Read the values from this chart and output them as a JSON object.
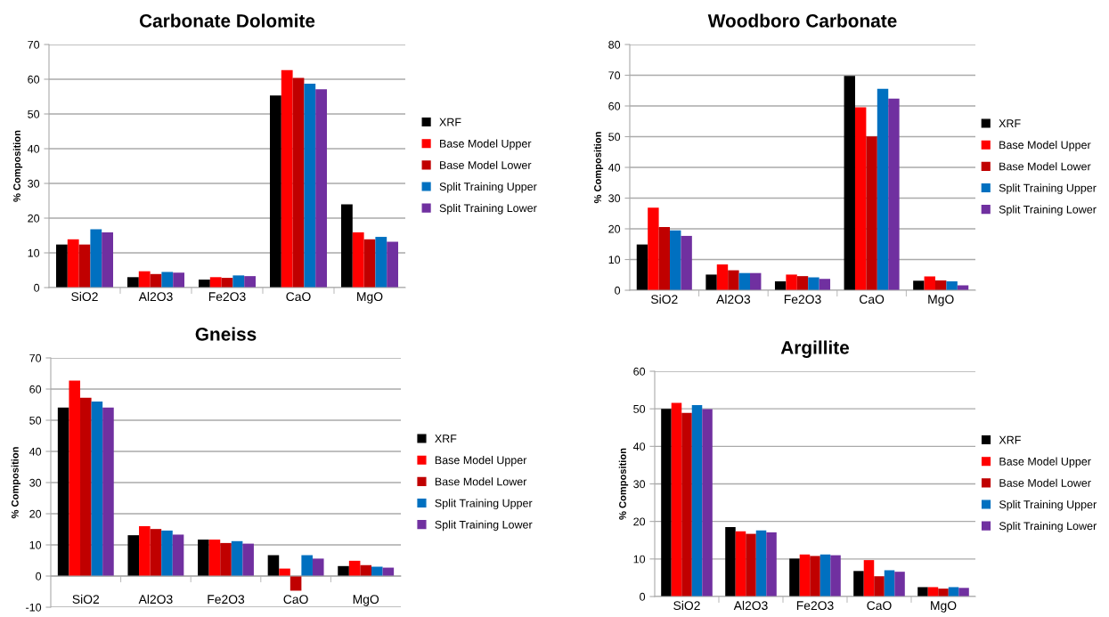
{
  "chart_data": [
    {
      "type": "bar",
      "title": "Carbonate Dolomite",
      "ylabel": "% Composition",
      "categories": [
        "SiO2",
        "Al2O3",
        "Fe2O3",
        "CaO",
        "MgO"
      ],
      "ylim": [
        0,
        70
      ],
      "yticks": [
        0,
        10,
        20,
        30,
        40,
        50,
        60,
        70
      ],
      "grid": "y",
      "legend": "right",
      "series": [
        {
          "name": "XRF",
          "color": "#000000",
          "values": [
            12.4,
            3.0,
            2.3,
            55.3,
            24.0
          ]
        },
        {
          "name": "Base Model Upper",
          "color": "#ff0000",
          "values": [
            13.9,
            4.7,
            3.0,
            62.6,
            15.9
          ]
        },
        {
          "name": "Base Model Lower",
          "color": "#c00000",
          "values": [
            12.4,
            3.9,
            2.8,
            60.4,
            13.9
          ]
        },
        {
          "name": "Split Training Upper",
          "color": "#0070c0",
          "values": [
            16.8,
            4.5,
            3.5,
            58.7,
            14.6
          ]
        },
        {
          "name": "Split Training Lower",
          "color": "#7030a0",
          "values": [
            15.9,
            4.3,
            3.3,
            57.1,
            13.2
          ]
        }
      ]
    },
    {
      "type": "bar",
      "title": "Woodboro Carbonate",
      "ylabel": "% Composition",
      "categories": [
        "SiO2",
        "Al2O3",
        "Fe2O3",
        "CaO",
        "MgO"
      ],
      "ylim": [
        0,
        80
      ],
      "yticks": [
        0,
        10,
        20,
        30,
        40,
        50,
        60,
        70,
        80
      ],
      "grid": "y",
      "legend": "right",
      "series": [
        {
          "name": "XRF",
          "color": "#000000",
          "values": [
            14.9,
            5.1,
            2.9,
            69.8,
            3.1
          ]
        },
        {
          "name": "Base Model Upper",
          "color": "#ff0000",
          "values": [
            26.9,
            8.4,
            5.1,
            59.6,
            4.5
          ]
        },
        {
          "name": "Base Model Lower",
          "color": "#c00000",
          "values": [
            20.6,
            6.5,
            4.6,
            50.1,
            3.2
          ]
        },
        {
          "name": "Split Training Upper",
          "color": "#0070c0",
          "values": [
            19.5,
            5.6,
            4.2,
            65.6,
            2.9
          ]
        },
        {
          "name": "Split Training Lower",
          "color": "#7030a0",
          "values": [
            17.7,
            5.6,
            3.7,
            62.4,
            1.6
          ]
        }
      ]
    },
    {
      "type": "bar",
      "title": "Gneiss",
      "ylabel": "% Composition",
      "categories": [
        "SiO2",
        "Al2O3",
        "Fe2O3",
        "CaO",
        "MgO"
      ],
      "ylim": [
        -10,
        70
      ],
      "yticks": [
        -10,
        0,
        10,
        20,
        30,
        40,
        50,
        60,
        70
      ],
      "grid": "y",
      "legend": "right",
      "series": [
        {
          "name": "XRF",
          "color": "#000000",
          "values": [
            54.1,
            13.1,
            11.7,
            6.7,
            3.2
          ]
        },
        {
          "name": "Base Model Upper",
          "color": "#ff0000",
          "values": [
            62.7,
            16.0,
            11.7,
            2.4,
            4.9
          ]
        },
        {
          "name": "Base Model Lower",
          "color": "#c00000",
          "values": [
            57.2,
            15.1,
            10.6,
            -4.7,
            3.5
          ]
        },
        {
          "name": "Split Training Upper",
          "color": "#0070c0",
          "values": [
            56.0,
            14.6,
            11.2,
            6.7,
            3.0
          ]
        },
        {
          "name": "Split Training Lower",
          "color": "#7030a0",
          "values": [
            54.1,
            13.3,
            10.4,
            5.6,
            2.7
          ]
        }
      ]
    },
    {
      "type": "bar",
      "title": "Argillite",
      "ylabel": "% Composition",
      "categories": [
        "SiO2",
        "Al2O3",
        "Fe2O3",
        "CaO",
        "MgO"
      ],
      "ylim": [
        0,
        60
      ],
      "yticks": [
        0,
        10,
        20,
        30,
        40,
        50,
        60
      ],
      "grid": "y",
      "legend": "right",
      "series": [
        {
          "name": "XRF",
          "color": "#000000",
          "values": [
            50.0,
            18.5,
            10.1,
            6.8,
            2.5
          ]
        },
        {
          "name": "Base Model Upper",
          "color": "#ff0000",
          "values": [
            51.6,
            17.4,
            11.2,
            9.7,
            2.5
          ]
        },
        {
          "name": "Base Model Lower",
          "color": "#c00000",
          "values": [
            48.9,
            16.7,
            10.8,
            5.4,
            2.1
          ]
        },
        {
          "name": "Split Training Upper",
          "color": "#0070c0",
          "values": [
            51.0,
            17.6,
            11.2,
            7.0,
            2.5
          ]
        },
        {
          "name": "Split Training Lower",
          "color": "#7030a0",
          "values": [
            49.9,
            17.1,
            11.0,
            6.6,
            2.3
          ]
        }
      ]
    }
  ]
}
